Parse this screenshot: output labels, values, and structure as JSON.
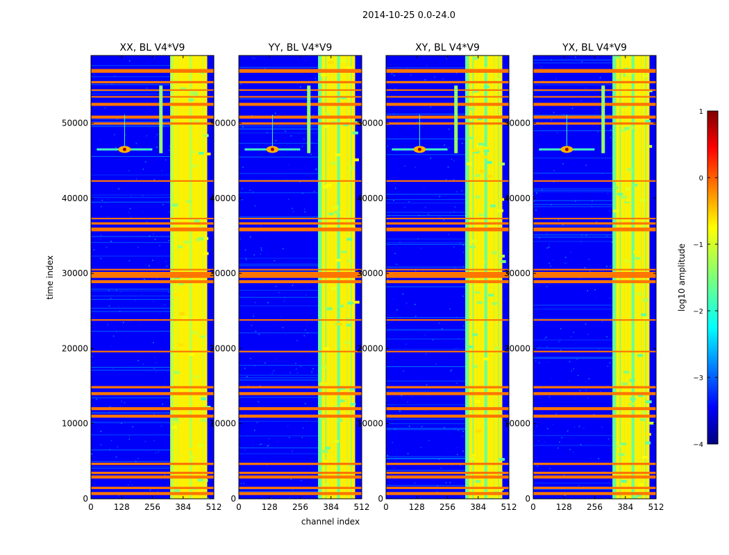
{
  "chart_data": {
    "type": "heatmap",
    "suptitle": "2014-10-25 0.0-24.0",
    "xlabel": "channel index",
    "ylabel": "time index",
    "xlim": [
      0,
      512
    ],
    "ylim": [
      0,
      59000
    ],
    "xticks": [
      0,
      128,
      256,
      384,
      512
    ],
    "yticks": [
      0,
      10000,
      20000,
      30000,
      40000,
      50000
    ],
    "panels": [
      {
        "title": "XX, BL V4*V9",
        "pol": "XX"
      },
      {
        "title": "YY, BL V4*V9",
        "pol": "YY"
      },
      {
        "title": "XY, BL V4*V9",
        "pol": "XY"
      },
      {
        "title": "YX, BL V4*V9",
        "pol": "YX"
      }
    ],
    "colorbar": {
      "label": "log10 amplitude",
      "range": [
        -4,
        1
      ],
      "ticks": [
        1,
        0,
        -1,
        -2,
        -3,
        -4
      ],
      "tick_labels": [
        "1",
        "0",
        "−1",
        "−2",
        "−3",
        "−4"
      ],
      "colormap": "jet"
    },
    "background_level": -3.4,
    "flagged_level": -0.2,
    "flagged_time_bands": [
      [
        500,
        900
      ],
      [
        1300,
        1600
      ],
      [
        2700,
        3100
      ],
      [
        3300,
        3600
      ],
      [
        4500,
        4800
      ],
      [
        10800,
        11200
      ],
      [
        11800,
        12200
      ],
      [
        13800,
        14200
      ],
      [
        14700,
        15000
      ],
      [
        19500,
        19700
      ],
      [
        23700,
        23900
      ],
      [
        28700,
        29100
      ],
      [
        29400,
        30200
      ],
      [
        30400,
        30600
      ],
      [
        35600,
        36100
      ],
      [
        36500,
        36800
      ],
      [
        37200,
        37400
      ],
      [
        42200,
        42400
      ],
      [
        49800,
        50100
      ],
      [
        50600,
        51000
      ],
      [
        52300,
        52700
      ],
      [
        53400,
        53600
      ],
      [
        54300,
        54500
      ],
      [
        55300,
        55600
      ],
      [
        56700,
        57200
      ]
    ],
    "rfi_channel_range": [
      330,
      480
    ],
    "rfi_level": -1.2,
    "rfi_bright_channels": [
      346,
      365,
      380,
      395,
      422,
      436,
      452,
      470
    ],
    "transient": {
      "channel": 140,
      "time": 46500,
      "level": 0.8
    },
    "vertical_feature": {
      "channel": 290,
      "time_range": [
        46000,
        55000
      ],
      "level": -1.4
    }
  }
}
